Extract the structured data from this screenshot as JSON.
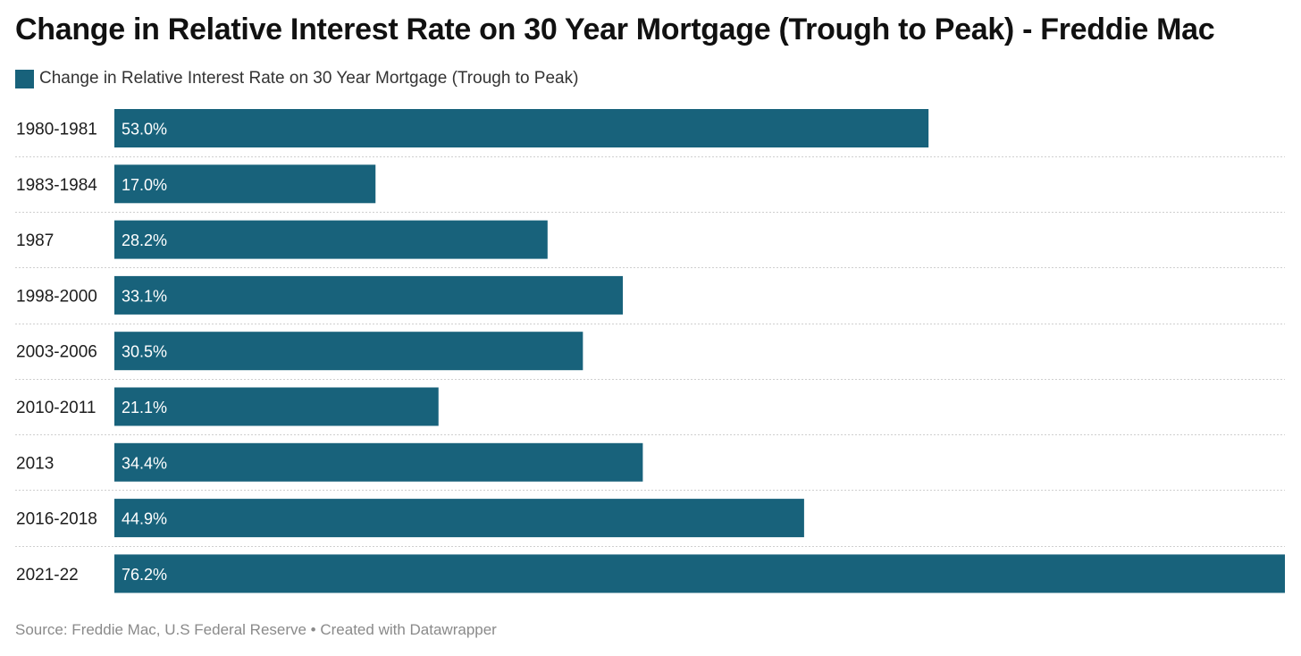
{
  "colors": {
    "bar": "#18627b",
    "gridline": "#cfcfcf"
  },
  "chart_data": {
    "type": "bar",
    "orientation": "horizontal",
    "title": "Change in Relative Interest Rate on 30 Year Mortgage (Trough to Peak) - Freddie Mac",
    "legend": {
      "placement": "top-left",
      "entries": [
        "Change in Relative Interest Rate on 30 Year Mortgage (Trough to Peak)"
      ]
    },
    "categories": [
      "1980-1981",
      "1983-1984",
      "1987",
      "1998-2000",
      "2003-2006",
      "2010-2011",
      "2013",
      "2016-2018",
      "2021-22"
    ],
    "series": [
      {
        "name": "Change in Relative Interest Rate on 30 Year Mortgage (Trough to Peak)",
        "values": [
          53.0,
          17.0,
          28.2,
          33.1,
          30.5,
          21.1,
          34.4,
          44.9,
          76.2
        ],
        "labels": [
          "53.0%",
          "17.0%",
          "28.2%",
          "33.1%",
          "30.5%",
          "21.1%",
          "34.4%",
          "44.9%",
          "76.2%"
        ]
      }
    ],
    "xlim": [
      0,
      76.2
    ],
    "grid": false
  },
  "footer": {
    "text": "Source: Freddie Mac, U.S Federal Reserve • Created with Datawrapper"
  }
}
